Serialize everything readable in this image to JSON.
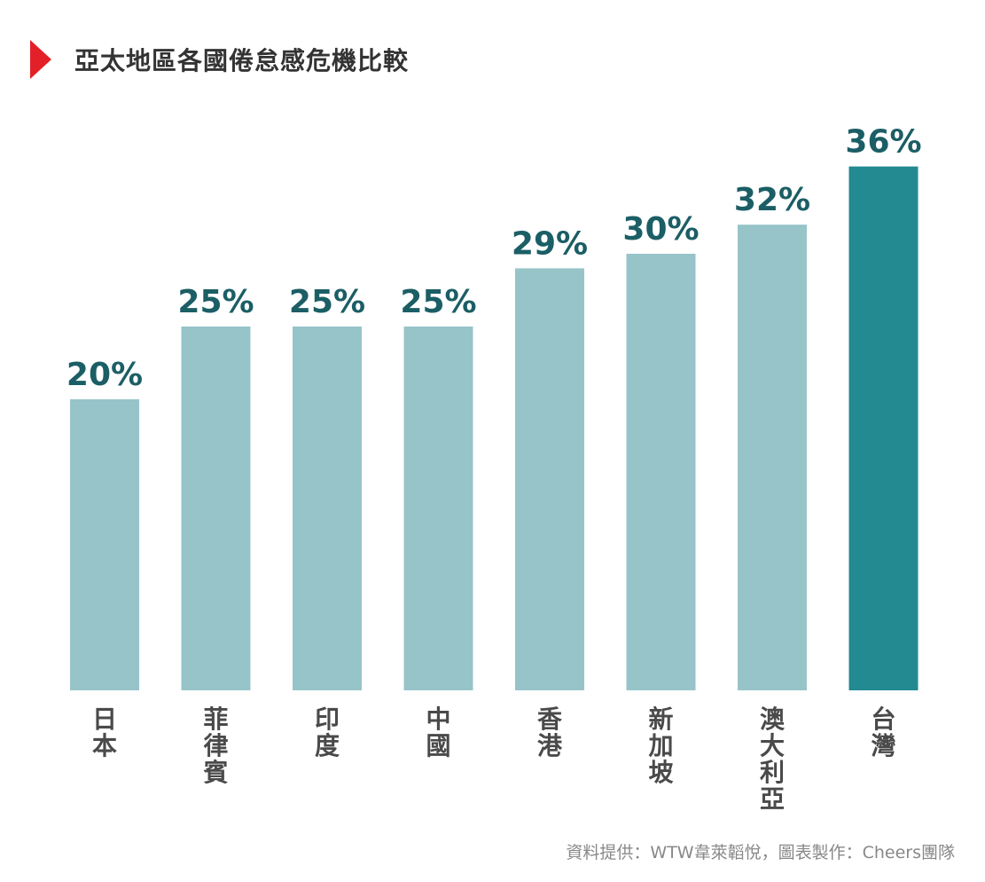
{
  "title": "亞太地區各國倦怠感危機比較",
  "source": "資料提供：WTW韋萊韜悅，圖表製作：Cheers團隊",
  "chart_data": {
    "type": "bar",
    "title": "亞太地區各國倦怠感危機比較",
    "categories": [
      "日本",
      "菲律賓",
      "印度",
      "中國",
      "香港",
      "新加坡",
      "澳大利亞",
      "台灣"
    ],
    "values": [
      20,
      25,
      25,
      25,
      29,
      30,
      32,
      36
    ],
    "value_labels": [
      "20%",
      "25%",
      "25%",
      "25%",
      "29%",
      "30%",
      "32%",
      "36%"
    ],
    "highlight_index": 7,
    "colors": {
      "bar": "#96c4c9",
      "highlight": "#238a92",
      "label": "#1b5e65",
      "axis_text": "#4a4a4a"
    },
    "grid": false
  }
}
